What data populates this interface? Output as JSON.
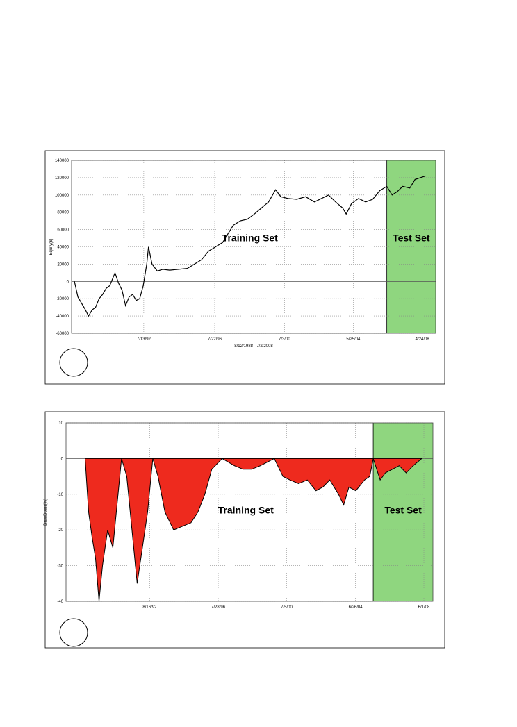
{
  "chart_data": [
    {
      "type": "line",
      "ylabel": "Equity($)",
      "xlabel": "8/12/1988 - 7/2/2008",
      "xlim": [
        1988.44,
        2009.07
      ],
      "ylim": [
        -60000,
        140000
      ],
      "yticks": [
        -60000,
        -40000,
        -20000,
        0,
        20000,
        40000,
        60000,
        80000,
        100000,
        120000,
        140000
      ],
      "xticks": [
        {
          "value": 1992.53,
          "label": "7/13/92"
        },
        {
          "value": 1996.55,
          "label": "7/22/96"
        },
        {
          "value": 2000.5,
          "label": "7/3/00"
        },
        {
          "value": 2004.4,
          "label": "5/25/04"
        },
        {
          "value": 2008.31,
          "label": "4/24/08"
        }
      ],
      "grid": true,
      "spans": [
        {
          "label": "Test Set",
          "start": 2006.3,
          "end": 2009.07,
          "color": "#8fd67f"
        }
      ],
      "annotation": "Training Set",
      "series": [
        {
          "color": "#000000",
          "x": [
            1988.6,
            1988.8,
            1989.0,
            1989.2,
            1989.4,
            1989.6,
            1989.8,
            1990.0,
            1990.2,
            1990.4,
            1990.6,
            1990.9,
            1991.1,
            1991.3,
            1991.5,
            1991.7,
            1991.9,
            1992.1,
            1992.3,
            1992.5,
            1992.7,
            1992.8,
            1993.0,
            1993.3,
            1993.6,
            1994.0,
            1994.5,
            1995.0,
            1995.4,
            1995.8,
            1996.2,
            1996.6,
            1997.0,
            1997.3,
            1997.6,
            1998.0,
            1998.4,
            1998.8,
            1999.2,
            1999.6,
            2000.0,
            2000.3,
            2000.7,
            2001.2,
            2001.7,
            2002.2,
            2002.6,
            2003.0,
            2003.4,
            2003.8,
            2004.0,
            2004.3,
            2004.7,
            2005.1,
            2005.5,
            2005.9,
            2006.3,
            2006.6,
            2006.9,
            2007.2,
            2007.6,
            2007.9,
            2008.2,
            2008.5
          ],
          "values": [
            0,
            -18000,
            -25000,
            -32000,
            -40000,
            -33000,
            -30000,
            -20000,
            -15000,
            -8000,
            -5000,
            10000,
            -2000,
            -10000,
            -28000,
            -18000,
            -15000,
            -22000,
            -20000,
            -5000,
            20000,
            40000,
            20000,
            12000,
            14000,
            13000,
            14000,
            15000,
            20000,
            25000,
            35000,
            40000,
            45000,
            55000,
            65000,
            70000,
            72000,
            78000,
            85000,
            92000,
            106000,
            98000,
            96000,
            95000,
            98000,
            92000,
            96000,
            100000,
            92000,
            85000,
            78000,
            90000,
            96000,
            92000,
            95000,
            105000,
            110000,
            100000,
            104000,
            110000,
            108000,
            118000,
            120000,
            122000
          ]
        }
      ]
    },
    {
      "type": "area",
      "ylabel": "DrawDown(%)",
      "xlim": [
        1987.8,
        2008.94
      ],
      "ylim": [
        -40,
        10
      ],
      "yticks": [
        -40,
        -30,
        -20,
        -10,
        0,
        10
      ],
      "xticks": [
        {
          "value": 1992.62,
          "label": "8/16/92"
        },
        {
          "value": 1996.57,
          "label": "7/28/96"
        },
        {
          "value": 2000.51,
          "label": "7/5/00"
        },
        {
          "value": 2004.48,
          "label": "6/26/04"
        },
        {
          "value": 2008.42,
          "label": "6/1/08"
        }
      ],
      "grid": true,
      "spans": [
        {
          "label": "Test Set",
          "start": 2005.5,
          "end": 2008.94,
          "color": "#8fd67f"
        }
      ],
      "annotation": "Training Set",
      "series": [
        {
          "color": "#ee2a1e",
          "x": [
            1988.9,
            1989.1,
            1989.3,
            1989.5,
            1989.7,
            1989.9,
            1990.2,
            1990.5,
            1990.8,
            1991.0,
            1991.3,
            1991.6,
            1991.9,
            1992.2,
            1992.5,
            1992.8,
            1993.1,
            1993.5,
            1994.0,
            1994.5,
            1995.0,
            1995.4,
            1995.8,
            1996.2,
            1996.8,
            1997.5,
            1998.0,
            1998.5,
            1999.0,
            1999.8,
            2000.3,
            2000.7,
            2001.2,
            2001.7,
            2002.2,
            2002.6,
            2003.0,
            2003.5,
            2003.8,
            2004.1,
            2004.5,
            2005.0,
            2005.3,
            2005.5,
            2005.9,
            2006.2,
            2006.6,
            2007.0,
            2007.4,
            2007.8,
            2008.3
          ],
          "values": [
            0,
            -15,
            -22,
            -28,
            -40,
            -30,
            -20,
            -25,
            -10,
            0,
            -5,
            -20,
            -35,
            -25,
            -15,
            0,
            -5,
            -15,
            -20,
            -19,
            -18,
            -15,
            -10,
            -3,
            0,
            -2,
            -3,
            -3,
            -2,
            0,
            -5,
            -6,
            -7,
            -6,
            -9,
            -8,
            -6,
            -10,
            -13,
            -8,
            -9,
            -6,
            -5,
            0,
            -6,
            -4,
            -3,
            -2,
            -4,
            -2,
            0
          ]
        }
      ]
    }
  ]
}
